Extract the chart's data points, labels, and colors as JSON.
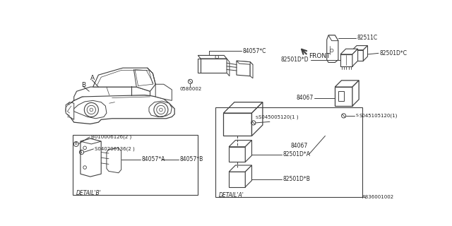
{
  "bg_color": "#ffffff",
  "line_color": "#404040",
  "text_color": "#222222",
  "parts": {
    "car_label_A": "A",
    "car_label_B": "B",
    "part_84057C": "84057*C",
    "part_0580002": "0580002",
    "part_82511C": "82511C",
    "part_82501DC": "82501D*C",
    "part_82501DD": "82501D*D",
    "part_84067_right": "84067",
    "part_84067_mid": "84067",
    "part_04510S120": "S045105120(1)",
    "part_04500S120": "S045005120(1 )",
    "part_82501DA": "82501D*A",
    "part_82501DB": "82501D*B",
    "part_84057A": "84057*A",
    "part_84057B": "84057*B",
    "part_B010006126": "B010006126(2 )",
    "part_S040206136": "S040206136(2 )",
    "detail_A": "DETAIL'A'",
    "detail_B": "DETAIL'B'",
    "front_label": "FRONT",
    "ref_code": "A836001002"
  }
}
